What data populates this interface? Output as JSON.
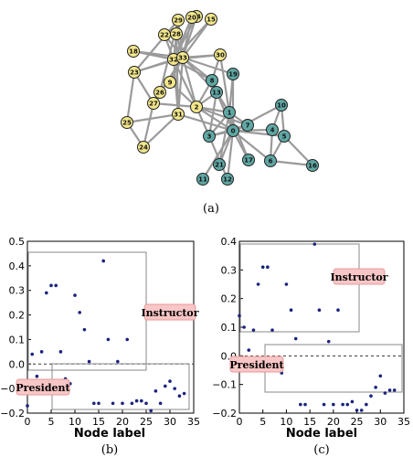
{
  "panel_a": {
    "caption": "(a)",
    "colors": {
      "group1": "#f2e68a",
      "group2": "#5fa7a4",
      "edge": "#9a9a9a",
      "stroke": "#222222"
    },
    "nodes": [
      {
        "id": "0",
        "g": 2
      },
      {
        "id": "1",
        "g": 2
      },
      {
        "id": "2",
        "g": 1
      },
      {
        "id": "3",
        "g": 2
      },
      {
        "id": "4",
        "g": 2
      },
      {
        "id": "5",
        "g": 2
      },
      {
        "id": "6",
        "g": 2
      },
      {
        "id": "7",
        "g": 2
      },
      {
        "id": "8",
        "g": 2
      },
      {
        "id": "9",
        "g": 1
      },
      {
        "id": "10",
        "g": 2
      },
      {
        "id": "11",
        "g": 2
      },
      {
        "id": "12",
        "g": 2
      },
      {
        "id": "13",
        "g": 2
      },
      {
        "id": "14",
        "g": 1
      },
      {
        "id": "15",
        "g": 1
      },
      {
        "id": "16",
        "g": 2
      },
      {
        "id": "17",
        "g": 2
      },
      {
        "id": "18",
        "g": 1
      },
      {
        "id": "19",
        "g": 2
      },
      {
        "id": "20",
        "g": 1
      },
      {
        "id": "21",
        "g": 2
      },
      {
        "id": "22",
        "g": 1
      },
      {
        "id": "23",
        "g": 1
      },
      {
        "id": "24",
        "g": 1
      },
      {
        "id": "25",
        "g": 1
      },
      {
        "id": "26",
        "g": 1
      },
      {
        "id": "27",
        "g": 1
      },
      {
        "id": "28",
        "g": 1
      },
      {
        "id": "29",
        "g": 1
      },
      {
        "id": "30",
        "g": 1
      },
      {
        "id": "31",
        "g": 1
      },
      {
        "id": "32",
        "g": 1
      },
      {
        "id": "33",
        "g": 1
      }
    ],
    "edges": [
      [
        "0",
        "1"
      ],
      [
        "0",
        "2"
      ],
      [
        "0",
        "3"
      ],
      [
        "0",
        "4"
      ],
      [
        "0",
        "5"
      ],
      [
        "0",
        "6"
      ],
      [
        "0",
        "7"
      ],
      [
        "0",
        "8"
      ],
      [
        "0",
        "10"
      ],
      [
        "0",
        "11"
      ],
      [
        "0",
        "12"
      ],
      [
        "0",
        "13"
      ],
      [
        "0",
        "17"
      ],
      [
        "0",
        "19"
      ],
      [
        "0",
        "21"
      ],
      [
        "0",
        "31"
      ],
      [
        "1",
        "2"
      ],
      [
        "1",
        "3"
      ],
      [
        "1",
        "7"
      ],
      [
        "1",
        "13"
      ],
      [
        "1",
        "17"
      ],
      [
        "1",
        "19"
      ],
      [
        "1",
        "21"
      ],
      [
        "1",
        "30"
      ],
      [
        "2",
        "3"
      ],
      [
        "2",
        "7"
      ],
      [
        "2",
        "8"
      ],
      [
        "2",
        "9"
      ],
      [
        "2",
        "13"
      ],
      [
        "2",
        "27"
      ],
      [
        "2",
        "28"
      ],
      [
        "2",
        "32"
      ],
      [
        "3",
        "7"
      ],
      [
        "3",
        "12"
      ],
      [
        "3",
        "13"
      ],
      [
        "4",
        "6"
      ],
      [
        "4",
        "10"
      ],
      [
        "5",
        "6"
      ],
      [
        "5",
        "10"
      ],
      [
        "5",
        "16"
      ],
      [
        "6",
        "16"
      ],
      [
        "8",
        "30"
      ],
      [
        "8",
        "32"
      ],
      [
        "8",
        "33"
      ],
      [
        "9",
        "33"
      ],
      [
        "13",
        "33"
      ],
      [
        "14",
        "32"
      ],
      [
        "14",
        "33"
      ],
      [
        "15",
        "32"
      ],
      [
        "15",
        "33"
      ],
      [
        "18",
        "32"
      ],
      [
        "18",
        "33"
      ],
      [
        "19",
        "33"
      ],
      [
        "20",
        "32"
      ],
      [
        "20",
        "33"
      ],
      [
        "22",
        "32"
      ],
      [
        "22",
        "33"
      ],
      [
        "23",
        "25"
      ],
      [
        "23",
        "27"
      ],
      [
        "23",
        "29"
      ],
      [
        "23",
        "32"
      ],
      [
        "23",
        "33"
      ],
      [
        "24",
        "25"
      ],
      [
        "24",
        "27"
      ],
      [
        "24",
        "31"
      ],
      [
        "25",
        "31"
      ],
      [
        "26",
        "29"
      ],
      [
        "26",
        "33"
      ],
      [
        "27",
        "33"
      ],
      [
        "28",
        "31"
      ],
      [
        "28",
        "33"
      ],
      [
        "29",
        "32"
      ],
      [
        "29",
        "33"
      ],
      [
        "30",
        "32"
      ],
      [
        "30",
        "33"
      ],
      [
        "31",
        "32"
      ],
      [
        "31",
        "33"
      ],
      [
        "32",
        "33"
      ]
    ]
  },
  "panel_b": {
    "caption": "(b)",
    "xlabel": "Node label",
    "xticks": [
      "0",
      "5",
      "10",
      "15",
      "20",
      "25",
      "30",
      "35"
    ],
    "yticks": [
      "0.5",
      "0.4",
      "0.3",
      "0.2",
      "0.1",
      "0.0",
      "−0.1",
      "−0.2"
    ],
    "labels": {
      "top": "Instructor",
      "bottom": "President"
    },
    "colors": {
      "point": "#1a237e",
      "tag_fill": "#f8c6c6",
      "tag_stroke": "#e89a9a"
    },
    "chart_data": {
      "type": "scatter",
      "xlim": [
        0,
        35
      ],
      "ylim": [
        -0.2,
        0.5
      ],
      "points": [
        [
          0,
          -0.17
        ],
        [
          1,
          0.04
        ],
        [
          2,
          -0.05
        ],
        [
          3,
          0.05
        ],
        [
          4,
          0.29
        ],
        [
          5,
          0.32
        ],
        [
          6,
          0.32
        ],
        [
          7,
          0.05
        ],
        [
          8,
          -0.06
        ],
        [
          9,
          -0.08
        ],
        [
          10,
          0.28
        ],
        [
          11,
          0.21
        ],
        [
          12,
          0.14
        ],
        [
          13,
          0.01
        ],
        [
          14,
          -0.16
        ],
        [
          15,
          -0.16
        ],
        [
          16,
          0.42
        ],
        [
          17,
          0.1
        ],
        [
          18,
          -0.16
        ],
        [
          19,
          0.01
        ],
        [
          20,
          -0.16
        ],
        [
          21,
          0.1
        ],
        [
          22,
          -0.16
        ],
        [
          23,
          -0.15
        ],
        [
          24,
          -0.15
        ],
        [
          25,
          -0.16
        ],
        [
          26,
          -0.19
        ],
        [
          27,
          -0.11
        ],
        [
          28,
          -0.16
        ],
        [
          29,
          -0.09
        ],
        [
          30,
          -0.07
        ],
        [
          31,
          -0.1
        ],
        [
          32,
          -0.13
        ],
        [
          33,
          -0.12
        ]
      ],
      "baseline": 0.0
    }
  },
  "panel_c": {
    "caption": "(c)",
    "xlabel": "Node label",
    "xticks": [
      "0",
      "5",
      "10",
      "15",
      "20",
      "25",
      "30",
      "35"
    ],
    "yticks": [
      "0.4",
      "0.3",
      "0.2",
      "0.1",
      "0.0",
      "−0.1",
      "−0.2"
    ],
    "labels": {
      "top": "Instructor",
      "bottom": "President"
    },
    "colors": {
      "point": "#1a237e",
      "tag_fill": "#f8c6c6",
      "tag_stroke": "#e89a9a"
    },
    "chart_data": {
      "type": "scatter",
      "xlim": [
        0,
        35
      ],
      "ylim": [
        -0.2,
        0.4
      ],
      "points": [
        [
          0,
          0.14
        ],
        [
          1,
          0.1
        ],
        [
          2,
          0.02
        ],
        [
          3,
          0.09
        ],
        [
          4,
          0.25
        ],
        [
          5,
          0.31
        ],
        [
          6,
          0.31
        ],
        [
          7,
          0.09
        ],
        [
          8,
          -0.04
        ],
        [
          9,
          -0.06
        ],
        [
          10,
          0.25
        ],
        [
          11,
          0.16
        ],
        [
          12,
          0.06
        ],
        [
          13,
          -0.17
        ],
        [
          14,
          -0.17
        ],
        [
          16,
          0.39
        ],
        [
          17,
          0.16
        ],
        [
          18,
          -0.17
        ],
        [
          19,
          0.05
        ],
        [
          20,
          -0.17
        ],
        [
          21,
          0.16
        ],
        [
          22,
          -0.17
        ],
        [
          23,
          -0.17
        ],
        [
          24,
          -0.16
        ],
        [
          25,
          -0.19
        ],
        [
          26,
          -0.19
        ],
        [
          27,
          -0.17
        ],
        [
          28,
          -0.14
        ],
        [
          29,
          -0.11
        ],
        [
          30,
          -0.07
        ],
        [
          31,
          -0.13
        ],
        [
          32,
          -0.12
        ],
        [
          33,
          -0.12
        ]
      ],
      "baseline": 0.0
    }
  }
}
